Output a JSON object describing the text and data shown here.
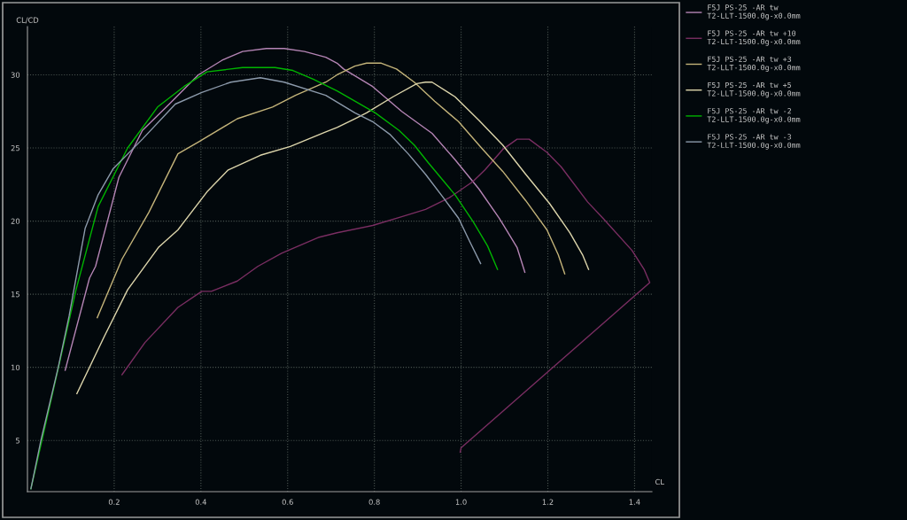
{
  "chart_data": {
    "type": "line",
    "xlabel": "CL",
    "ylabel": "CL/CD",
    "xlim": [
      0,
      1.44
    ],
    "ylim": [
      1.5,
      33.3
    ],
    "xticks": [
      0.2,
      0.4,
      0.6,
      0.8,
      {
        "value": 1.0,
        "label": "1.0"
      },
      1.2,
      1.4
    ],
    "yticks": [
      5,
      10,
      15,
      20,
      25,
      30
    ],
    "grid": true,
    "legend": "right",
    "line_style": "solid",
    "marker": "none",
    "series": [
      {
        "name": "F5J PS-25 -AR tw\nT2-LLT-1500.0g-x0.0mm",
        "color": "#b585b5",
        "x": [
          0.087,
          0.143,
          0.157,
          0.211,
          0.265,
          0.327,
          0.394,
          0.449,
          0.496,
          0.551,
          0.592,
          0.639,
          0.688,
          0.714,
          0.729,
          0.796,
          0.863,
          0.933,
          0.986,
          1.041,
          1.088,
          1.129,
          1.147
        ],
        "values": [
          9.8,
          16.1,
          16.9,
          23.0,
          26.2,
          28.0,
          30.0,
          31.0,
          31.6,
          31.8,
          31.8,
          31.6,
          31.2,
          30.8,
          30.4,
          29.2,
          27.5,
          26.0,
          24.2,
          22.2,
          20.2,
          18.2,
          16.5
        ]
      },
      {
        "name": "F5J PS-25 -AR tw +10\nT2-LLT-1500.0g-x0.0mm",
        "color": "#7a2e62",
        "x": [
          0.218,
          0.271,
          0.347,
          0.402,
          0.424,
          0.484,
          0.531,
          0.586,
          0.673,
          0.714,
          0.796,
          0.863,
          0.918,
          0.973,
          1.027,
          1.055,
          1.096,
          1.129,
          1.157,
          1.198,
          1.231,
          1.292,
          1.327,
          1.394,
          1.422,
          1.435,
          1.0,
          0.998
        ],
        "values": [
          9.5,
          11.7,
          14.1,
          15.2,
          15.2,
          15.9,
          16.9,
          17.8,
          18.9,
          19.2,
          19.7,
          20.3,
          20.8,
          21.6,
          22.7,
          23.5,
          24.9,
          25.6,
          25.6,
          24.7,
          23.7,
          21.3,
          20.2,
          18.0,
          16.7,
          15.8,
          4.5,
          4.2
        ]
      },
      {
        "name": "F5J PS-25 -AR tw +3\nT2-LLT-1500.0g-x0.0mm",
        "color": "#c4b47a",
        "x": [
          0.161,
          0.218,
          0.28,
          0.347,
          0.394,
          0.484,
          0.565,
          0.618,
          0.688,
          0.714,
          0.755,
          0.782,
          0.816,
          0.851,
          0.892,
          0.939,
          0.994,
          1.047,
          1.096,
          1.149,
          1.198,
          1.224,
          1.239
        ],
        "values": [
          13.4,
          17.4,
          20.6,
          24.6,
          25.4,
          27.0,
          27.8,
          28.6,
          29.5,
          30.0,
          30.6,
          30.8,
          30.8,
          30.4,
          29.5,
          28.2,
          26.8,
          25.0,
          23.4,
          21.4,
          19.4,
          17.7,
          16.4
        ]
      },
      {
        "name": "F5J PS-25 -AR tw +5\nT2-LLT-1500.0g-x0.0mm",
        "color": "#ddd6ac",
        "x": [
          0.114,
          0.177,
          0.231,
          0.302,
          0.347,
          0.414,
          0.463,
          0.537,
          0.606,
          0.688,
          0.714,
          0.755,
          0.782,
          0.843,
          0.898,
          0.918,
          0.933,
          0.986,
          1.041,
          1.096,
          1.149,
          1.204,
          1.251,
          1.28,
          1.294
        ],
        "values": [
          8.2,
          12.1,
          15.3,
          18.2,
          19.4,
          22.0,
          23.5,
          24.5,
          25.1,
          26.1,
          26.4,
          27.0,
          27.4,
          28.5,
          29.4,
          29.5,
          29.5,
          28.5,
          26.9,
          25.2,
          23.2,
          21.2,
          19.2,
          17.7,
          16.7
        ]
      },
      {
        "name": "F5J PS-25 -AR tw -2\nT2-LLT-1500.0g-x0.0mm",
        "color": "#00b400",
        "x": [
          0.008,
          0.041,
          0.112,
          0.163,
          0.231,
          0.3,
          0.361,
          0.414,
          0.496,
          0.571,
          0.612,
          0.659,
          0.714,
          0.755,
          0.802,
          0.857,
          0.892,
          0.924,
          0.986,
          1.027,
          1.061,
          1.084
        ],
        "values": [
          1.7,
          6.0,
          15.3,
          21.0,
          25.0,
          27.8,
          29.2,
          30.2,
          30.5,
          30.5,
          30.3,
          29.7,
          28.9,
          28.2,
          27.4,
          26.2,
          25.2,
          24.0,
          21.8,
          20.0,
          18.3,
          16.7
        ]
      },
      {
        "name": "F5J PS-25 -AR tw -3\nT2-LLT-1500.0g-x0.0mm",
        "color": "#8c9aab",
        "x": [
          0.008,
          0.031,
          0.071,
          0.096,
          0.133,
          0.163,
          0.198,
          0.265,
          0.341,
          0.402,
          0.469,
          0.537,
          0.592,
          0.688,
          0.755,
          0.796,
          0.837,
          0.878,
          0.918,
          0.959,
          0.994,
          1.02,
          1.045
        ],
        "values": [
          1.7,
          5.0,
          10.0,
          13.5,
          19.5,
          21.8,
          23.6,
          25.6,
          28.0,
          28.8,
          29.5,
          29.8,
          29.5,
          28.6,
          27.4,
          26.8,
          25.9,
          24.6,
          23.2,
          21.6,
          20.2,
          18.6,
          17.1
        ]
      }
    ]
  }
}
